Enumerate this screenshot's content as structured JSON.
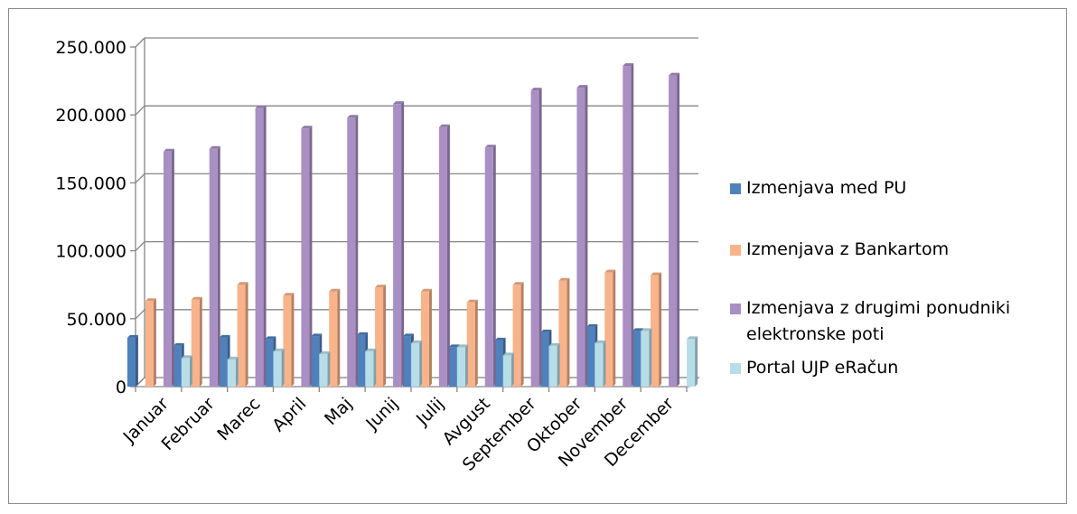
{
  "chart_data": {
    "type": "bar",
    "title": "",
    "xlabel": "",
    "ylabel": "",
    "ylim": [
      0,
      250000
    ],
    "y_ticks": [
      0,
      50000,
      100000,
      150000,
      200000,
      250000
    ],
    "y_tick_labels": [
      "0",
      "50.000",
      "100.000",
      "150.000",
      "200.000",
      "250.000"
    ],
    "grid": "horizontal",
    "legend_position": "right",
    "categories": [
      "Januar",
      "Februar",
      "Marec",
      "April",
      "Maj",
      "Junij",
      "Julij",
      "Avgust",
      "September",
      "Oktober",
      "November",
      "December"
    ],
    "series": [
      {
        "name": "Izmenjava med PU",
        "color": "#4f81bd",
        "values": [
          36000,
          30000,
          36000,
          35000,
          37000,
          38000,
          37000,
          29000,
          34000,
          40000,
          44000,
          41000
        ]
      },
      {
        "name": "Izmenjava z Bankartom",
        "color": "#f9b38a",
        "values": [
          63000,
          64000,
          75000,
          67000,
          70000,
          73000,
          70000,
          62000,
          75000,
          78000,
          84000,
          82000
        ]
      },
      {
        "name": "Izmenjava z drugimi ponudniki elektronske poti",
        "color": "#a98fc4",
        "values": [
          173000,
          175000,
          205000,
          190000,
          198000,
          208000,
          191000,
          176000,
          218000,
          220000,
          236000,
          229000
        ]
      },
      {
        "name": "Portal UJP eRačun",
        "color": "#b7dde8",
        "values": [
          21000,
          20000,
          26000,
          24000,
          26000,
          32000,
          29000,
          23000,
          30000,
          32000,
          41000,
          35000
        ]
      }
    ]
  }
}
